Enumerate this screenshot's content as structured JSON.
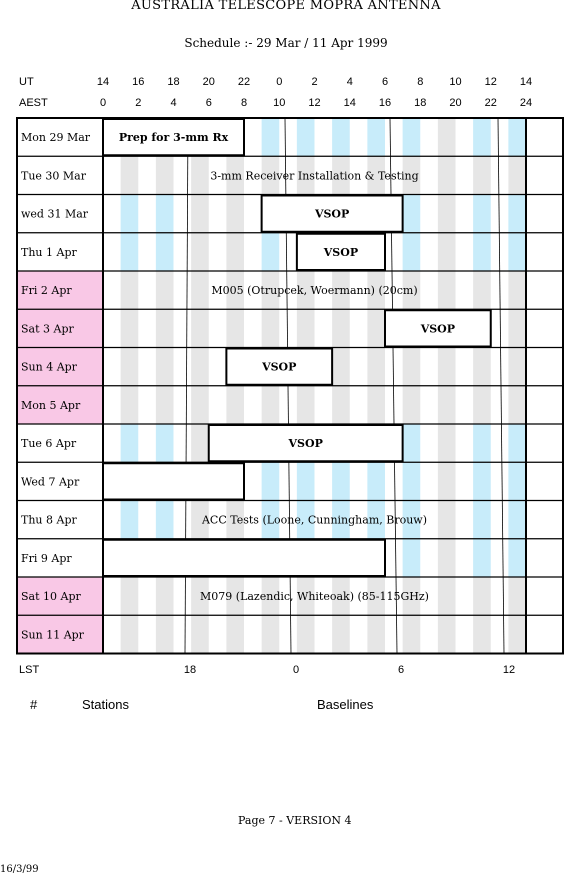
{
  "title": "AUSTRALIA TELESCOPE MOPRA ANTENNA",
  "subtitle": "Schedule :- 29 Mar / 11 Apr 1999",
  "axes": {
    "ut_label": "UT",
    "ut_ticks": [
      "14",
      "16",
      "18",
      "20",
      "22",
      "0",
      "2",
      "4",
      "6",
      "8",
      "10",
      "12",
      "14"
    ],
    "aest_label": "AEST",
    "aest_ticks": [
      "0",
      "2",
      "4",
      "6",
      "8",
      "10",
      "12",
      "14",
      "16",
      "18",
      "20",
      "22",
      "24"
    ],
    "lst_label": "LST",
    "lst_ticks": [
      "18",
      "0",
      "6",
      "12"
    ]
  },
  "colors": {
    "blue_band": "#c8ecfa",
    "grey_band": "#e6e6e6",
    "weekend": "#f9c8e6"
  },
  "days": [
    {
      "label": "Mon  29  Mar",
      "weekend": false
    },
    {
      "label": "Tue   30  Mar",
      "weekend": false
    },
    {
      "label": "wed  31  Mar",
      "weekend": false
    },
    {
      "label": "Thu    1  Apr",
      "weekend": false
    },
    {
      "label": "Fri     2  Apr",
      "weekend": true
    },
    {
      "label": "Sat    3  Apr",
      "weekend": true
    },
    {
      "label": "Sun    4  Apr",
      "weekend": true
    },
    {
      "label": "Mon   5  Apr",
      "weekend": true
    },
    {
      "label": "Tue    6  Apr",
      "weekend": false
    },
    {
      "label": "Wed    7  Apr",
      "weekend": false
    },
    {
      "label": "Thu    8  Apr",
      "weekend": false
    },
    {
      "label": "Fri     9  Apr",
      "weekend": false
    },
    {
      "label": "Sat   10  Apr",
      "weekend": true
    },
    {
      "label": "Sun   11  Apr",
      "weekend": true
    }
  ],
  "blocks": [
    {
      "row": 0,
      "start_aest": 0,
      "end_aest": 8,
      "text": "Prep for 3-mm Rx",
      "boxed": true,
      "bold": true
    },
    {
      "row": 1,
      "start_aest": 0,
      "end_aest": 24,
      "text": "3-mm Receiver Installation & Testing",
      "boxed": false,
      "bold": false
    },
    {
      "row": 2,
      "start_aest": 9,
      "end_aest": 17,
      "text": "VSOP",
      "boxed": true,
      "bold": true
    },
    {
      "row": 3,
      "start_aest": 11,
      "end_aest": 16,
      "text": "VSOP",
      "boxed": true,
      "bold": true
    },
    {
      "row": 4,
      "start_aest": 0,
      "end_aest": 24,
      "text": "M005 (Otrupcek, Woermann) (20cm)",
      "boxed": false,
      "bold": false
    },
    {
      "row": 5,
      "start_aest": 16,
      "end_aest": 22,
      "text": "VSOP",
      "boxed": true,
      "bold": true
    },
    {
      "row": 6,
      "start_aest": 7,
      "end_aest": 13,
      "text": "VSOP",
      "boxed": true,
      "bold": true
    },
    {
      "row": 8,
      "start_aest": 6,
      "end_aest": 17,
      "text": "VSOP",
      "boxed": true,
      "bold": true
    },
    {
      "row": 9,
      "start_aest": 0,
      "end_aest": 8,
      "text": "",
      "boxed": true,
      "bold": false
    },
    {
      "row": 10,
      "start_aest": 0,
      "end_aest": 24,
      "text": "ACC Tests (Loone, Cunningham, Brouw)",
      "boxed": false,
      "bold": false
    },
    {
      "row": 11,
      "start_aest": 0,
      "end_aest": 16,
      "text": "",
      "boxed": true,
      "bold": false
    },
    {
      "row": 12,
      "start_aest": 0,
      "end_aest": 24,
      "text": "M079 (Lazendic, Whiteoak) (85-115GHz)",
      "boxed": false,
      "bold": false
    }
  ],
  "white_rows": [
    1,
    4,
    5,
    6,
    7,
    12,
    13
  ],
  "footer": {
    "hash": "#",
    "stations": "Stations",
    "baselines": "Baselines",
    "page": "Page 7 - VERSION 4",
    "date": "16/3/99"
  }
}
